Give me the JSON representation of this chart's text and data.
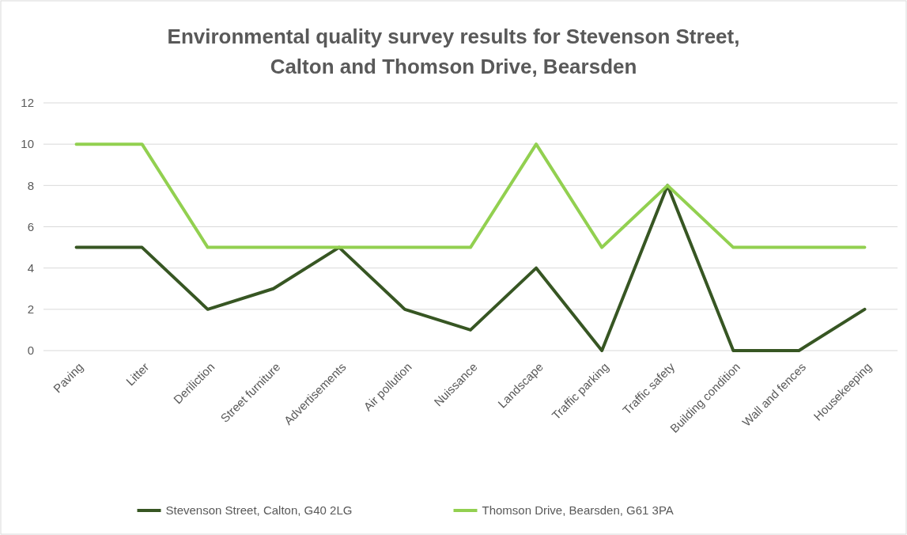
{
  "chart_data": {
    "type": "line",
    "title": "Environmental quality survey results for Stevenson Street, Calton and Thomson Drive, Bearsden",
    "categories": [
      "Paving",
      "Litter",
      "Deriliction",
      "Street furniture",
      "Advertisements",
      "Air pollution",
      "Nuissance",
      "Landscape",
      "Traffic parking",
      "Traffic safety",
      "Building condition",
      "Wall and fences",
      "Housekeeping"
    ],
    "series": [
      {
        "name": "Stevenson Street, Calton, G40 2LG",
        "color": "#375623",
        "values": [
          5,
          5,
          2,
          3,
          5,
          2,
          1,
          4,
          0,
          8,
          0,
          0,
          2
        ]
      },
      {
        "name": "Thomson Drive, Bearsden, G61 3PA",
        "color": "#92d050",
        "values": [
          10,
          10,
          5,
          5,
          5,
          5,
          5,
          10,
          5,
          8,
          5,
          5,
          5
        ]
      }
    ],
    "ylim": [
      0,
      12
    ],
    "yticks": [
      0,
      2,
      4,
      6,
      8,
      10,
      12
    ],
    "grid": "y",
    "legend": "bottom",
    "marker": "none",
    "line_style": "solid"
  }
}
